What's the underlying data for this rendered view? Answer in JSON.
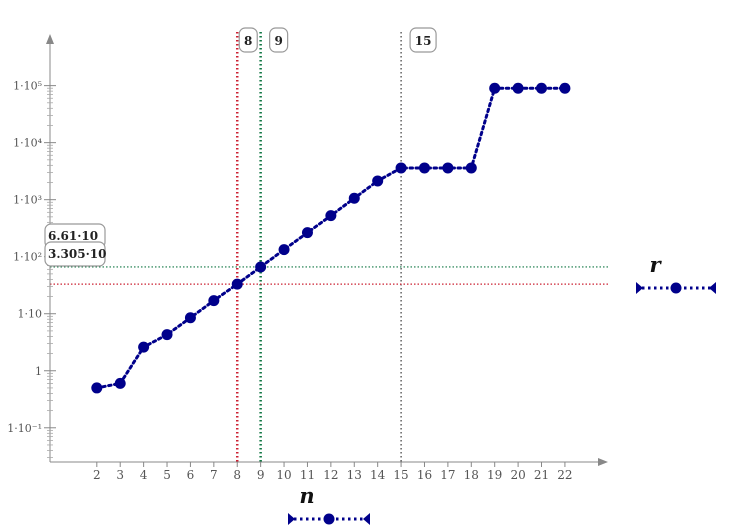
{
  "chart_data": {
    "type": "scatter",
    "xlabel": "n",
    "ylabel": "r",
    "yscale": "log",
    "xlim": [
      0,
      23.2
    ],
    "ylim": [
      -1.6,
      5.8
    ],
    "xticks": [
      2,
      3,
      4,
      5,
      6,
      7,
      8,
      9,
      10,
      11,
      12,
      13,
      14,
      15,
      16,
      17,
      18,
      19,
      20,
      21,
      22
    ],
    "yticks": [
      {
        "exp": -1,
        "label": "1·10⁻¹"
      },
      {
        "exp": 0,
        "label": "1"
      },
      {
        "exp": 1,
        "label": "1·10"
      },
      {
        "exp": 2,
        "label": "1·10²"
      },
      {
        "exp": 3,
        "label": "1·10³"
      },
      {
        "exp": 4,
        "label": "1·10⁴"
      },
      {
        "exp": 5,
        "label": "1·10⁵"
      }
    ],
    "series": [
      {
        "x": [
          2,
          3,
          4,
          5,
          6,
          7,
          8,
          9,
          10,
          11,
          12,
          13,
          14,
          15,
          16,
          17,
          18,
          19,
          20,
          21,
          22
        ],
        "y": [
          0.5,
          0.6,
          2.6,
          4.3,
          8.5,
          17,
          33.05,
          66.1,
          133,
          264,
          525,
          1060,
          2130,
          3600,
          3600,
          3600,
          3600,
          90000,
          90000,
          90000,
          90000
        ],
        "color": "#00008b",
        "style": "dotted-with-circles"
      }
    ],
    "vertical_markers": [
      {
        "x": 8,
        "label": "8",
        "color": "#cc2233"
      },
      {
        "x": 9,
        "label": "9",
        "color": "#117744"
      },
      {
        "x": 15,
        "label": "15",
        "color": "#111111"
      }
    ],
    "horizontal_markers": [
      {
        "y": 66.1,
        "label": "6.61·10",
        "color": "#117744"
      },
      {
        "y": 33.05,
        "label": "3.305·10",
        "color": "#cc2233"
      }
    ],
    "grid": false,
    "legend": {
      "x_name": "n",
      "y_name": "r",
      "placement": "bottom-center and right"
    }
  }
}
